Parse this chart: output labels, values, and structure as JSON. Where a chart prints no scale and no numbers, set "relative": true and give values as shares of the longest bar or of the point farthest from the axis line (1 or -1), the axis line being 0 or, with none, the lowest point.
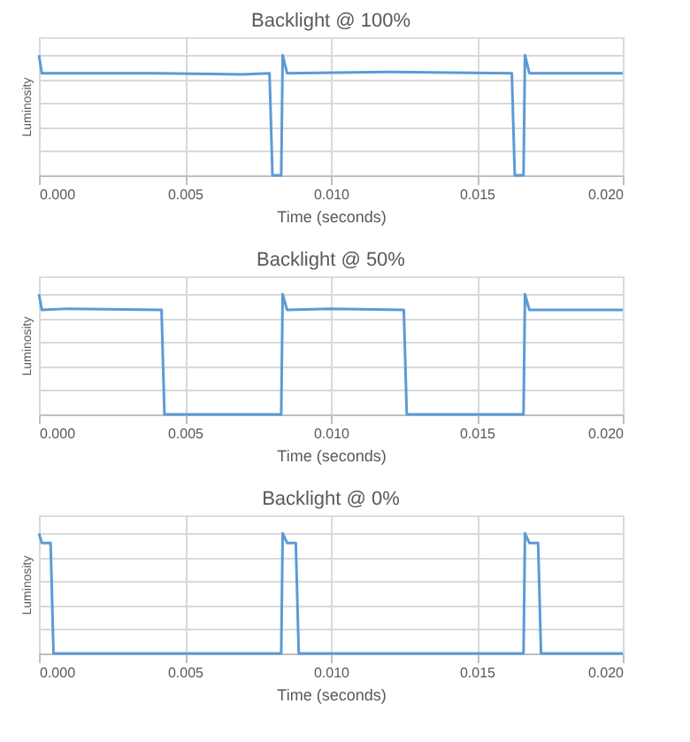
{
  "chart_data": [
    {
      "type": "line",
      "title": "Backlight @ 100%",
      "xlabel": "Time (seconds)",
      "ylabel": "Luminosity",
      "relative": true,
      "xlim": [
        0,
        0.02
      ],
      "xticks": [
        {
          "value": 0,
          "label": "0.000"
        },
        {
          "value": 0.005,
          "label": "0.005"
        },
        {
          "value": 0.01,
          "label": "0.010"
        },
        {
          "value": 0.015,
          "label": "0.015"
        },
        {
          "value": 0.02,
          "label": "0.020"
        }
      ],
      "grid": true,
      "series": [
        {
          "color": "#5b9bd5",
          "x": [
            0,
            0.0001,
            0.004,
            0.007,
            0.0079,
            0.008,
            0.0083,
            0.00835,
            0.0085,
            0.012,
            0.0162,
            0.0163,
            0.0166,
            0.01665,
            0.0168,
            0.02
          ],
          "values": [
            1,
            0.85,
            0.85,
            0.84,
            0.85,
            0,
            0,
            1,
            0.85,
            0.86,
            0.85,
            0,
            0,
            1,
            0.85,
            0.85
          ]
        }
      ]
    },
    {
      "type": "line",
      "title": "Backlight @ 50%",
      "xlabel": "Time (seconds)",
      "ylabel": "Luminosity",
      "relative": true,
      "xlim": [
        0,
        0.02
      ],
      "xticks": [
        {
          "value": 0,
          "label": "0.000"
        },
        {
          "value": 0.005,
          "label": "0.005"
        },
        {
          "value": 0.01,
          "label": "0.010"
        },
        {
          "value": 0.015,
          "label": "0.015"
        },
        {
          "value": 0.02,
          "label": "0.020"
        }
      ],
      "grid": true,
      "series": [
        {
          "color": "#5b9bd5",
          "x": [
            0,
            0.0001,
            0.001,
            0.0042,
            0.0043,
            0.0083,
            0.00835,
            0.0085,
            0.01,
            0.0125,
            0.0126,
            0.0166,
            0.01665,
            0.0168,
            0.02
          ],
          "values": [
            1,
            0.87,
            0.88,
            0.87,
            0,
            0,
            1,
            0.87,
            0.88,
            0.87,
            0,
            0,
            1,
            0.87,
            0.87
          ]
        }
      ]
    },
    {
      "type": "line",
      "title": "Backlight @ 0%",
      "xlabel": "Time (seconds)",
      "ylabel": "Luminosity",
      "relative": true,
      "xlim": [
        0,
        0.02
      ],
      "xticks": [
        {
          "value": 0,
          "label": "0.000"
        },
        {
          "value": 0.005,
          "label": "0.005"
        },
        {
          "value": 0.01,
          "label": "0.010"
        },
        {
          "value": 0.015,
          "label": "0.015"
        },
        {
          "value": 0.02,
          "label": "0.020"
        }
      ],
      "grid": true,
      "series": [
        {
          "color": "#5b9bd5",
          "x": [
            0,
            0.0001,
            0.0004,
            0.0005,
            0.0083,
            0.00835,
            0.0085,
            0.0088,
            0.0089,
            0.0166,
            0.01665,
            0.0168,
            0.0171,
            0.0172,
            0.02
          ],
          "values": [
            1,
            0.92,
            0.92,
            0,
            0,
            1,
            0.92,
            0.92,
            0,
            0,
            1,
            0.92,
            0.92,
            0,
            0
          ]
        }
      ]
    }
  ]
}
